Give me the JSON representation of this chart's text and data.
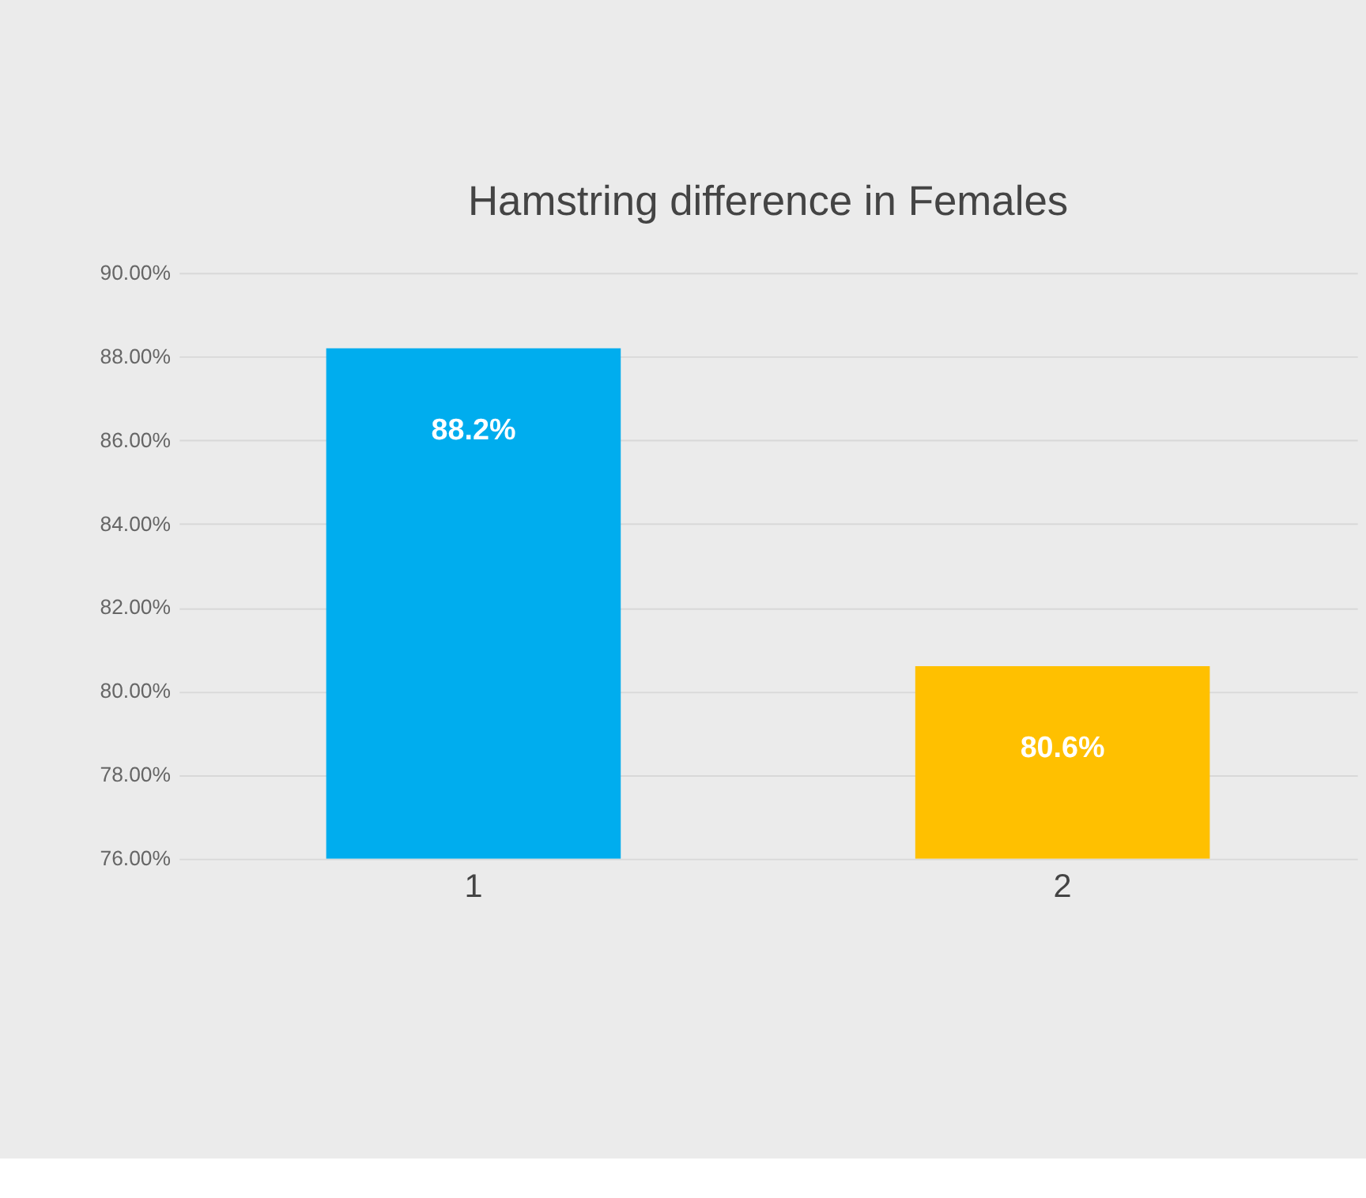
{
  "chart_data": {
    "type": "bar",
    "title": "Hamstring difference in Females",
    "categories": [
      "1",
      "2"
    ],
    "values": [
      88.2,
      80.6
    ],
    "colors": [
      "#00adee",
      "#ffc000"
    ],
    "value_labels": [
      "88.2%",
      "80.6%"
    ],
    "ylim": [
      76,
      90
    ],
    "yticks": [
      {
        "value": 76,
        "label": "76.00%"
      },
      {
        "value": 78,
        "label": "78.00%"
      },
      {
        "value": 80,
        "label": "80.00%"
      },
      {
        "value": 82,
        "label": "82.00%"
      },
      {
        "value": 84,
        "label": "84.00%"
      },
      {
        "value": 86,
        "label": "86.00%"
      },
      {
        "value": 88,
        "label": "88.00%"
      },
      {
        "value": 90,
        "label": "90.00%"
      }
    ],
    "grid": "y"
  }
}
